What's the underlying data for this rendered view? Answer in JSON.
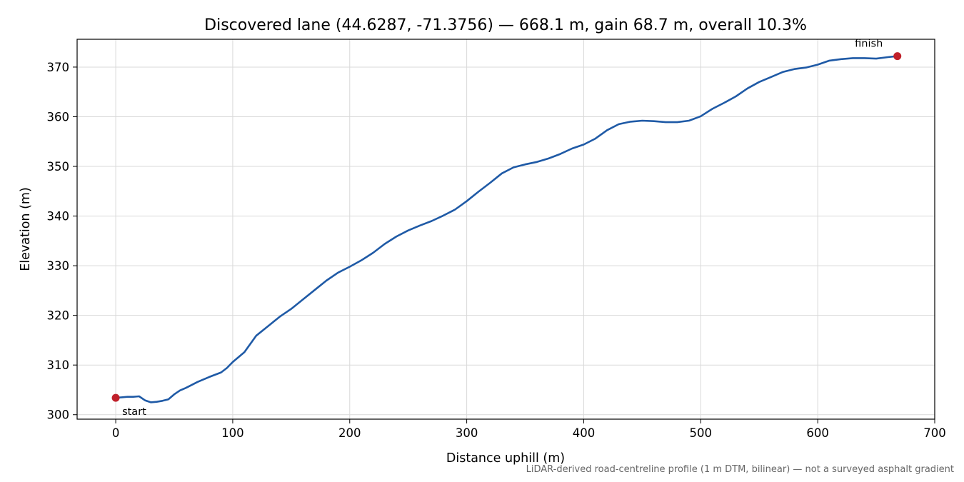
{
  "chart_data": {
    "type": "line",
    "title": "Discovered lane (44.6287, -71.3756) — 668.1 m, gain 68.7 m, overall 10.3%",
    "xlabel": "Distance uphill (m)",
    "ylabel": "Elevation (m)",
    "xlim": [
      -33,
      700
    ],
    "ylim": [
      299.1,
      375.6
    ],
    "x_ticks": [
      0,
      100,
      200,
      300,
      400,
      500,
      600,
      700
    ],
    "y_ticks": [
      300,
      310,
      320,
      330,
      340,
      350,
      360,
      370
    ],
    "grid": true,
    "line_color": "#1f5aa6",
    "marker_color": "#c0202a",
    "series": [
      {
        "x": [
          0,
          5,
          10,
          15,
          20,
          25,
          30,
          35,
          40,
          45,
          50,
          55,
          60,
          70,
          80,
          90,
          95,
          100,
          110,
          120,
          130,
          140,
          150,
          160,
          170,
          180,
          190,
          200,
          210,
          220,
          230,
          240,
          250,
          260,
          270,
          280,
          290,
          300,
          310,
          320,
          330,
          340,
          350,
          360,
          370,
          380,
          390,
          400,
          410,
          420,
          430,
          440,
          450,
          460,
          470,
          480,
          490,
          500,
          510,
          520,
          530,
          540,
          550,
          560,
          570,
          580,
          590,
          600,
          610,
          620,
          630,
          640,
          650,
          660,
          668.1
        ],
        "y": [
          303.4,
          303.5,
          303.6,
          303.6,
          303.7,
          302.9,
          302.5,
          302.6,
          302.8,
          303.1,
          304.1,
          304.9,
          305.4,
          306.6,
          307.6,
          308.5,
          309.4,
          310.6,
          312.6,
          315.9,
          317.8,
          319.7,
          321.3,
          323.2,
          325.1,
          327.0,
          328.6,
          329.8,
          331.1,
          332.6,
          334.4,
          335.9,
          337.1,
          338.1,
          339.0,
          340.1,
          341.3,
          343.0,
          344.9,
          346.7,
          348.6,
          349.8,
          350.4,
          350.9,
          351.6,
          352.5,
          353.6,
          354.4,
          355.6,
          357.3,
          358.5,
          359.0,
          359.2,
          359.1,
          358.9,
          358.9,
          359.2,
          360.1,
          361.6,
          362.8,
          364.1,
          365.7,
          367.0,
          368.0,
          369.0,
          369.6,
          369.9,
          370.5,
          371.3,
          371.6,
          371.8,
          371.8,
          371.7,
          372.0,
          372.2
        ]
      }
    ],
    "annotations": {
      "start_label": "start",
      "finish_label": "finish",
      "start_point": [
        0,
        303.4
      ],
      "finish_point": [
        668.1,
        372.2
      ]
    },
    "caption": "LiDAR-derived road-centreline profile (1 m DTM, bilinear) — not a surveyed asphalt gradient"
  }
}
